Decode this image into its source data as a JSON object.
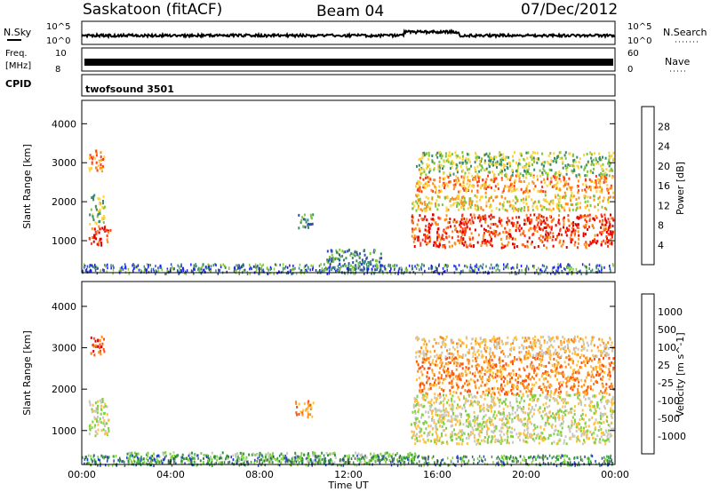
{
  "header": {
    "station": "Saskatoon (fitACF)",
    "beam": "Beam 04",
    "date": "07/Dec/2012"
  },
  "strips": {
    "nsky_label": "N.Sky",
    "nsky_ticks": [
      "10^5",
      "10^0"
    ],
    "nsearch_label": "N.Search",
    "freq_label_1": "Freq.",
    "freq_label_2": "[MHz]",
    "freq_ticks": [
      "10",
      "8"
    ],
    "nave_ticks": [
      "60",
      "0"
    ],
    "nave_label": "Nave",
    "cpid_label": "CPID",
    "cpid_value": "twofsound 3501"
  },
  "axes": {
    "ylabel": "Slant Range [km]",
    "xlabel": "Time UT",
    "yticks": [
      1000,
      2000,
      3000,
      4000
    ],
    "xticks": [
      "00:00",
      "04:00",
      "08:00",
      "12:00",
      "16:00",
      "20:00",
      "00:00"
    ]
  },
  "chart_data": [
    {
      "type": "heatmap",
      "name": "power",
      "xlabel": "Time UT",
      "ylabel": "Slant Range [km]",
      "xlim_hours": [
        0,
        24
      ],
      "ylim_km": [
        180,
        4600
      ],
      "colorbar_label": "Power [dB]",
      "colorbar_ticks": [
        4,
        8,
        12,
        16,
        20,
        24,
        28
      ],
      "colors": [
        "#1a1aff",
        "#2d4fb0",
        "#3a8a6e",
        "#7fc63a",
        "#ffd23a",
        "#ff8c1a",
        "#ff3a1a",
        "#e00000"
      ],
      "regions": [
        {
          "t": [
            0.3,
            1.3
          ],
          "r": [
            900,
            1400
          ],
          "level": 6
        },
        {
          "t": [
            0.3,
            1.0
          ],
          "r": [
            1450,
            2200
          ],
          "level": 3
        },
        {
          "t": [
            0.3,
            1.0
          ],
          "r": [
            2800,
            3350
          ],
          "level": 5
        },
        {
          "t": [
            9.6,
            10.4
          ],
          "r": [
            1350,
            1750
          ],
          "level": 2
        },
        {
          "t": [
            11.0,
            13.5
          ],
          "r": [
            250,
            800
          ],
          "level": 2
        },
        {
          "t": [
            14.8,
            23.9
          ],
          "r": [
            850,
            1700
          ],
          "level": 6
        },
        {
          "t": [
            14.8,
            23.9
          ],
          "r": [
            1800,
            2200
          ],
          "level": 4
        },
        {
          "t": [
            15.0,
            23.9
          ],
          "r": [
            2250,
            2700
          ],
          "level": 5
        },
        {
          "t": [
            15.0,
            23.9
          ],
          "r": [
            2700,
            3300
          ],
          "level": 3
        }
      ]
    },
    {
      "type": "heatmap",
      "name": "velocity",
      "xlabel": "Time UT",
      "ylabel": "Slant Range [km]",
      "xlim_hours": [
        0,
        24
      ],
      "ylim_km": [
        180,
        4600
      ],
      "colorbar_label": "Velocity [m s^-1]",
      "colorbar_ticks": [
        1000,
        500,
        100,
        25,
        -25,
        -100,
        -500,
        -1000
      ],
      "colors": [
        "#2040c0",
        "#3a7050",
        "#2d9a3a",
        "#80d040",
        "#c8c8c0",
        "#ffc040",
        "#ff8c1a",
        "#ff5010",
        "#e00000"
      ],
      "regions": [
        {
          "t": [
            0.3,
            1.0
          ],
          "r": [
            2850,
            3300
          ],
          "level": 7
        },
        {
          "t": [
            0.3,
            1.2
          ],
          "r": [
            900,
            1800
          ],
          "level": 4
        },
        {
          "t": [
            9.6,
            10.4
          ],
          "r": [
            1350,
            1750
          ],
          "level": 6
        },
        {
          "t": [
            2.0,
            15.0
          ],
          "r": [
            250,
            500
          ],
          "level": 3
        },
        {
          "t": [
            14.8,
            23.9
          ],
          "r": [
            700,
            1900
          ],
          "level": 4
        },
        {
          "t": [
            15.0,
            23.9
          ],
          "r": [
            1900,
            2800
          ],
          "level": 6
        },
        {
          "t": [
            15.0,
            23.9
          ],
          "r": [
            2800,
            3300
          ],
          "level": 5
        }
      ]
    }
  ]
}
